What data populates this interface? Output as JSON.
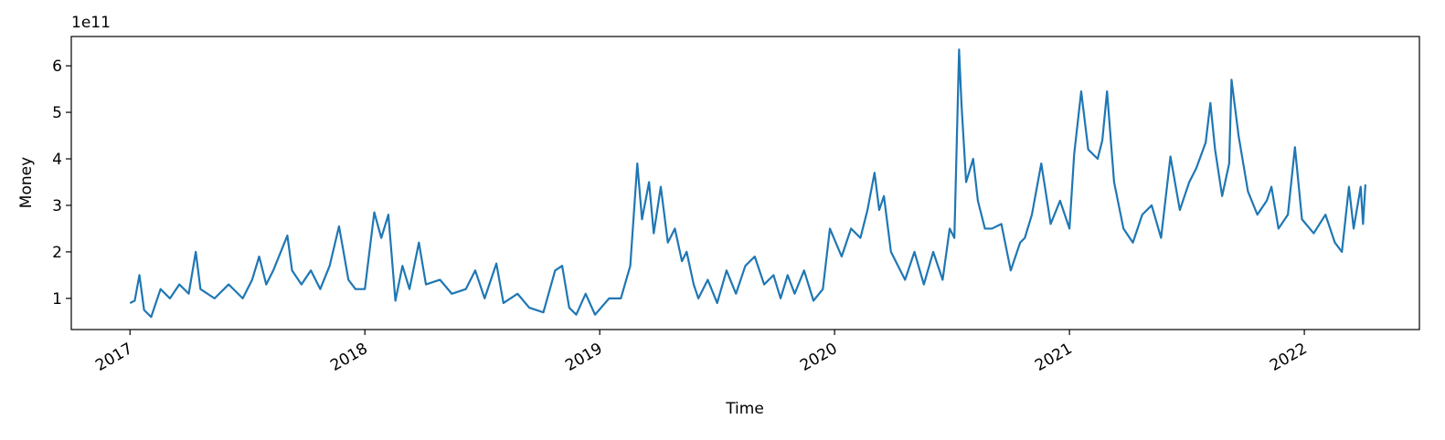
{
  "chart_data": {
    "type": "line",
    "x_label": "Time",
    "y_label": "Money",
    "y_offset_label": "1e11",
    "xlim": [
      2016.75,
      2022.49
    ],
    "xticks": [
      2017,
      2018,
      2019,
      2020,
      2021,
      2022
    ],
    "ylim": [
      0.33,
      6.63
    ],
    "yticks": [
      1,
      2,
      3,
      4,
      5,
      6
    ],
    "grid": false,
    "series": [
      {
        "color": "#1f77b4",
        "x": [
          2017.0,
          2017.02,
          2017.04,
          2017.06,
          2017.09,
          2017.13,
          2017.17,
          2017.21,
          2017.25,
          2017.28,
          2017.3,
          2017.36,
          2017.42,
          2017.48,
          2017.52,
          2017.55,
          2017.58,
          2017.61,
          2017.67,
          2017.69,
          2017.73,
          2017.77,
          2017.81,
          2017.85,
          2017.89,
          2017.93,
          2017.96,
          2018.0,
          2018.04,
          2018.07,
          2018.1,
          2018.13,
          2018.16,
          2018.19,
          2018.23,
          2018.26,
          2018.32,
          2018.37,
          2018.43,
          2018.47,
          2018.51,
          2018.56,
          2018.59,
          2018.65,
          2018.7,
          2018.76,
          2018.81,
          2018.84,
          2018.87,
          2018.9,
          2018.94,
          2018.98,
          2019.04,
          2019.09,
          2019.13,
          2019.16,
          2019.18,
          2019.21,
          2019.23,
          2019.26,
          2019.29,
          2019.32,
          2019.35,
          2019.37,
          2019.4,
          2019.42,
          2019.46,
          2019.5,
          2019.54,
          2019.58,
          2019.62,
          2019.66,
          2019.7,
          2019.74,
          2019.77,
          2019.8,
          2019.83,
          2019.87,
          2019.91,
          2019.95,
          2019.98,
          2020.03,
          2020.07,
          2020.11,
          2020.14,
          2020.17,
          2020.19,
          2020.21,
          2020.24,
          2020.27,
          2020.3,
          2020.34,
          2020.38,
          2020.42,
          2020.46,
          2020.49,
          2020.51,
          2020.53,
          2020.54,
          2020.56,
          2020.59,
          2020.61,
          2020.64,
          2020.67,
          2020.71,
          2020.75,
          2020.79,
          2020.81,
          2020.84,
          2020.88,
          2020.92,
          2020.96,
          2021.0,
          2021.02,
          2021.04,
          2021.05,
          2021.08,
          2021.12,
          2021.14,
          2021.16,
          2021.19,
          2021.23,
          2021.27,
          2021.31,
          2021.35,
          2021.39,
          2021.43,
          2021.47,
          2021.51,
          2021.54,
          2021.58,
          2021.6,
          2021.62,
          2021.65,
          2021.68,
          2021.69,
          2021.72,
          2021.76,
          2021.8,
          2021.84,
          2021.86,
          2021.89,
          2021.93,
          2021.96,
          2021.99,
          2022.04,
          2022.09,
          2022.13,
          2022.16,
          2022.19,
          2022.21,
          2022.24,
          2022.25,
          2022.26
        ],
        "values": [
          0.9,
          0.95,
          1.5,
          0.75,
          0.6,
          1.2,
          1.0,
          1.3,
          1.1,
          2.0,
          1.2,
          1.0,
          1.3,
          1.0,
          1.4,
          1.9,
          1.3,
          1.6,
          2.35,
          1.6,
          1.3,
          1.6,
          1.2,
          1.7,
          2.55,
          1.4,
          1.2,
          1.2,
          2.85,
          2.3,
          2.8,
          0.95,
          1.7,
          1.2,
          2.2,
          1.3,
          1.4,
          1.1,
          1.2,
          1.6,
          1.0,
          1.75,
          0.9,
          1.1,
          0.8,
          0.7,
          1.6,
          1.7,
          0.8,
          0.65,
          1.1,
          0.65,
          1.0,
          1.0,
          1.7,
          3.9,
          2.7,
          3.5,
          2.4,
          3.4,
          2.2,
          2.5,
          1.8,
          2.0,
          1.3,
          1.0,
          1.4,
          0.9,
          1.6,
          1.1,
          1.7,
          1.9,
          1.3,
          1.5,
          1.0,
          1.5,
          1.1,
          1.6,
          0.95,
          1.2,
          2.5,
          1.9,
          2.5,
          2.3,
          2.9,
          3.7,
          2.9,
          3.2,
          2.0,
          1.7,
          1.4,
          2.0,
          1.3,
          2.0,
          1.4,
          2.5,
          2.3,
          6.35,
          5.2,
          3.5,
          4.0,
          3.1,
          2.5,
          2.5,
          2.6,
          1.6,
          2.2,
          2.3,
          2.8,
          3.9,
          2.6,
          3.1,
          2.5,
          4.1,
          5.0,
          5.45,
          4.2,
          4.0,
          4.4,
          5.45,
          3.5,
          2.5,
          2.2,
          2.8,
          3.0,
          2.3,
          4.05,
          2.9,
          3.5,
          3.8,
          4.35,
          5.2,
          4.2,
          3.2,
          3.9,
          5.7,
          4.5,
          3.3,
          2.8,
          3.1,
          3.4,
          2.5,
          2.8,
          4.25,
          2.7,
          2.4,
          2.8,
          2.2,
          2.0,
          3.4,
          2.5,
          3.4,
          2.6,
          3.45
        ]
      }
    ]
  }
}
